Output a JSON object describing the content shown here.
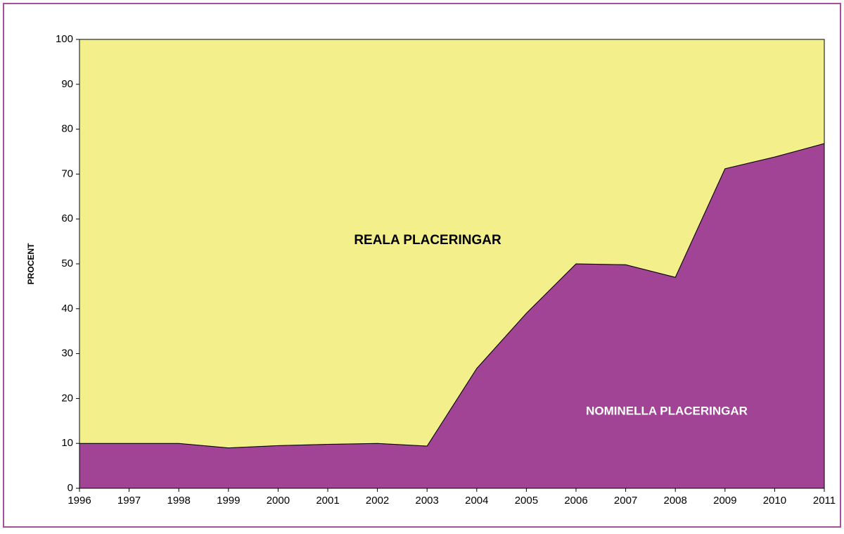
{
  "chart_data": {
    "type": "area",
    "stacked": true,
    "y_label": "PROCENT",
    "categories": [
      "1996",
      "1997",
      "1998",
      "1999",
      "2000",
      "2001",
      "2002",
      "2003",
      "2004",
      "2005",
      "2006",
      "2007",
      "2008",
      "2009",
      "2010",
      "2011"
    ],
    "series": [
      {
        "name": "NOMINELLA PLACERINGAR",
        "color": "#a24496",
        "values": [
          10,
          10,
          10,
          9,
          9.5,
          9.8,
          10,
          9.4,
          26.7,
          39,
          50,
          49.8,
          47,
          71.2,
          73.8,
          76.8
        ]
      },
      {
        "name": "REALA PLACERINGAR",
        "color": "#f3ef8b",
        "values": [
          90,
          90,
          90,
          91,
          90.5,
          90.2,
          90,
          90.6,
          73.3,
          61,
          50,
          50.2,
          53,
          28.8,
          26.2,
          23.2
        ]
      }
    ],
    "ylim": [
      0,
      100
    ],
    "yticks": [
      0,
      10,
      20,
      30,
      40,
      50,
      60,
      70,
      80,
      90,
      100
    ]
  }
}
